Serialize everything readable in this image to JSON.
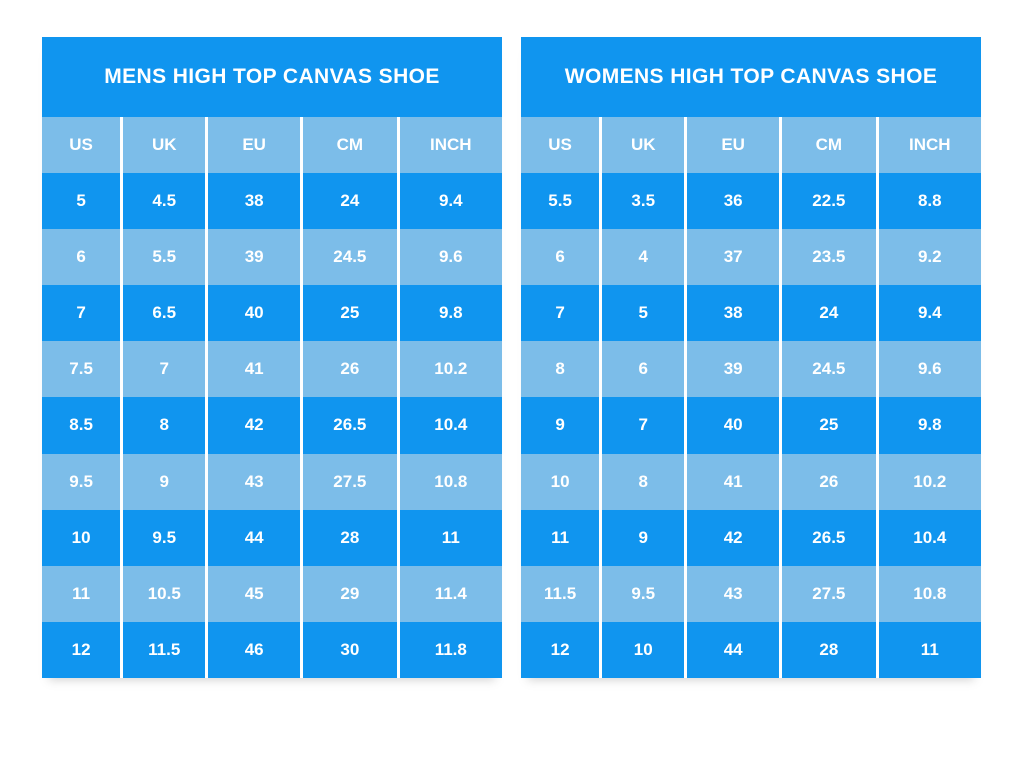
{
  "colors": {
    "primary_blue": "#1095ef",
    "light_blue": "#7cbde9",
    "text_white": "#ffffff",
    "page_background": "#ffffff"
  },
  "chart_data": [
    {
      "type": "table",
      "id": "mens",
      "title": "MENS HIGH TOP CANVAS SHOE",
      "columns": [
        "US",
        "UK",
        "EU",
        "CM",
        "INCH"
      ],
      "rows": [
        [
          "5",
          "4.5",
          "38",
          "24",
          "9.4"
        ],
        [
          "6",
          "5.5",
          "39",
          "24.5",
          "9.6"
        ],
        [
          "7",
          "6.5",
          "40",
          "25",
          "9.8"
        ],
        [
          "7.5",
          "7",
          "41",
          "26",
          "10.2"
        ],
        [
          "8.5",
          "8",
          "42",
          "26.5",
          "10.4"
        ],
        [
          "9.5",
          "9",
          "43",
          "27.5",
          "10.8"
        ],
        [
          "10",
          "9.5",
          "44",
          "28",
          "11"
        ],
        [
          "11",
          "10.5",
          "45",
          "29",
          "11.4"
        ],
        [
          "12",
          "11.5",
          "46",
          "30",
          "11.8"
        ]
      ]
    },
    {
      "type": "table",
      "id": "womens",
      "title": "WOMENS HIGH TOP CANVAS SHOE",
      "columns": [
        "US",
        "UK",
        "EU",
        "CM",
        "INCH"
      ],
      "rows": [
        [
          "5.5",
          "3.5",
          "36",
          "22.5",
          "8.8"
        ],
        [
          "6",
          "4",
          "37",
          "23.5",
          "9.2"
        ],
        [
          "7",
          "5",
          "38",
          "24",
          "9.4"
        ],
        [
          "8",
          "6",
          "39",
          "24.5",
          "9.6"
        ],
        [
          "9",
          "7",
          "40",
          "25",
          "9.8"
        ],
        [
          "10",
          "8",
          "41",
          "26",
          "10.2"
        ],
        [
          "11",
          "9",
          "42",
          "26.5",
          "10.4"
        ],
        [
          "11.5",
          "9.5",
          "43",
          "27.5",
          "10.8"
        ],
        [
          "12",
          "10",
          "44",
          "28",
          "11"
        ]
      ]
    }
  ]
}
